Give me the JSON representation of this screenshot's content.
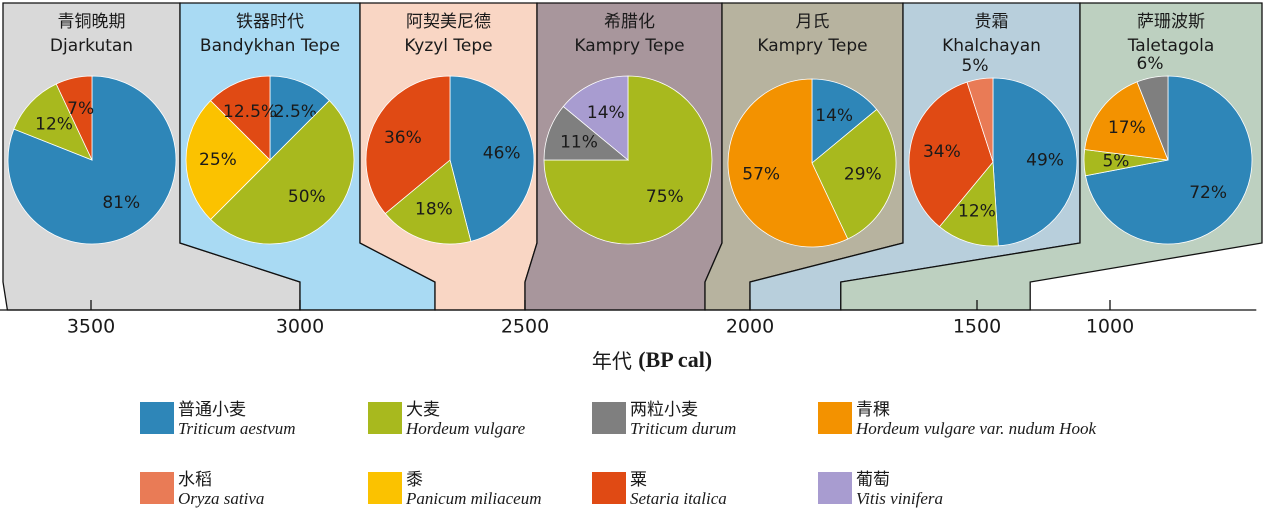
{
  "chart_data": [
    {
      "type": "pie",
      "title": "青铜晚期",
      "subtitle": "Djarkutan",
      "values": [
        81,
        12,
        7
      ],
      "value_labels": [
        "81%",
        "12%",
        "7%"
      ],
      "colors": [
        "#2e86b8",
        "#a8b91e",
        "#e04a14"
      ],
      "panel_color": "#d9d9d9",
      "span": [
        3700,
        3000
      ]
    },
    {
      "type": "pie",
      "title": "铁器时代",
      "subtitle": "Bandykhan Tepe",
      "values": [
        12.5,
        50,
        25,
        12.5
      ],
      "value_labels": [
        "12.5%",
        "50%",
        "25%",
        "12.5%"
      ],
      "colors": [
        "#2e86b8",
        "#a8b91e",
        "#fbc200",
        "#e04a14"
      ],
      "panel_color": "#a9daf3",
      "span": [
        3000,
        2700
      ]
    },
    {
      "type": "pie",
      "title": "阿契美尼德",
      "subtitle": "Kyzyl Tepe",
      "values": [
        46,
        18,
        36
      ],
      "value_labels": [
        "46%",
        "18%",
        "36%"
      ],
      "colors": [
        "#2e86b8",
        "#a8b91e",
        "#e04a14"
      ],
      "panel_color": "#f9d6c4",
      "span": [
        2700,
        2500
      ]
    },
    {
      "type": "pie",
      "title": "希腊化",
      "subtitle": "Kampry Tepe",
      "values": [
        75,
        11,
        14
      ],
      "value_labels": [
        "75%",
        "11%",
        "14%"
      ],
      "colors": [
        "#a8b91e",
        "#7f7f7f",
        "#a89cd0"
      ],
      "panel_color": "#a8969c",
      "span": [
        2500,
        2100
      ]
    },
    {
      "type": "pie",
      "title": "月氏",
      "subtitle": "Kampry Tepe",
      "values": [
        14,
        29,
        57
      ],
      "value_labels": [
        "14%",
        "29%",
        "57%"
      ],
      "colors": [
        "#2e86b8",
        "#a8b91e",
        "#f39200"
      ],
      "panel_color": "#b7b39f",
      "span": [
        2100,
        2000
      ]
    },
    {
      "type": "pie",
      "title": "贵霜",
      "subtitle": "Khalchayan",
      "values": [
        49,
        12,
        34,
        5
      ],
      "value_labels": [
        "49%",
        "12%",
        "34%",
        "5%"
      ],
      "colors": [
        "#2e86b8",
        "#a8b91e",
        "#e04a14",
        "#e97b56"
      ],
      "panel_color": "#b8cfdc",
      "span": [
        2000,
        1800
      ]
    },
    {
      "type": "pie",
      "title": "萨珊波斯",
      "subtitle": "Taletagola",
      "values": [
        72,
        5,
        17,
        6
      ],
      "value_labels": [
        "72%",
        "5%",
        "17%",
        "6%"
      ],
      "colors": [
        "#2e86b8",
        "#a8b91e",
        "#f39200",
        "#7f7f7f"
      ],
      "panel_color": "#bdd0c0",
      "span": [
        1800,
        1300
      ]
    }
  ],
  "time_axis": {
    "xlabel": "年代",
    "xlabel_unit": "(BP cal)",
    "xlim": [
      3720,
      450
    ],
    "xticks": [
      3500,
      3000,
      2500,
      2000,
      1500,
      1000
    ]
  },
  "legend": {
    "items": [
      {
        "name": "普通小麦",
        "latin": "Triticum aestvum",
        "color": "#2e86b8"
      },
      {
        "name": "大麦",
        "latin": "Hordeum vulgare",
        "color": "#a8b91e"
      },
      {
        "name": "两粒小麦",
        "latin": "Triticum durum",
        "color": "#7f7f7f"
      },
      {
        "name": "青稞",
        "latin": "Hordeum vulgare var. nudum Hook",
        "color": "#f39200"
      },
      {
        "name": "水稻",
        "latin": "Oryza sativa",
        "color": "#e97b56"
      },
      {
        "name": "黍",
        "latin": "Panicum miliaceum",
        "color": "#fbc200"
      },
      {
        "name": "粟",
        "latin": "Setaria italica",
        "color": "#e04a14"
      },
      {
        "name": "葡萄",
        "latin": "Vitis vinifera",
        "color": "#a89cd0"
      }
    ]
  }
}
